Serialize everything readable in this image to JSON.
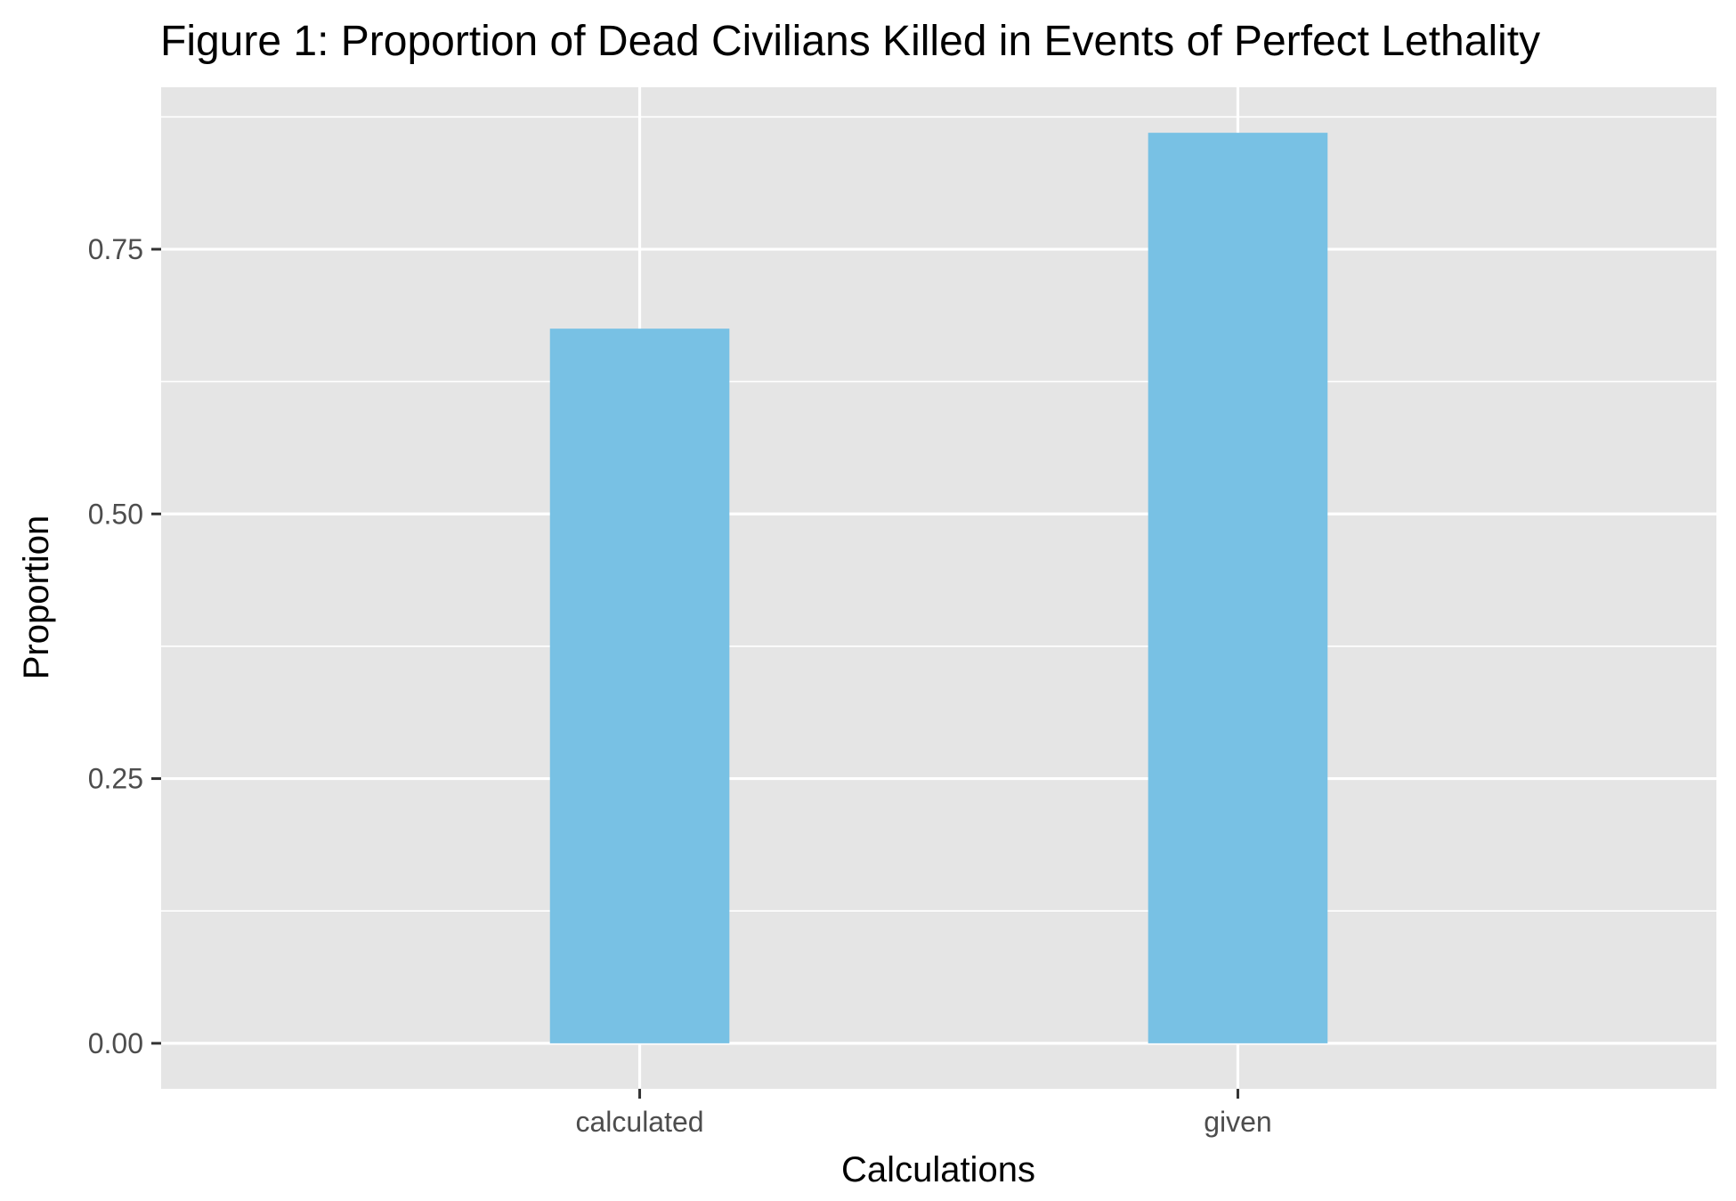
{
  "chart_data": {
    "type": "bar",
    "title": "Figure 1: Proportion of Dead Civilians Killed in Events of Perfect Lethality",
    "xlabel": "Calculations",
    "ylabel": "Proportion",
    "categories": [
      "calculated",
      "given"
    ],
    "values": [
      0.675,
      0.86
    ],
    "ylim": [
      -0.043,
      0.903
    ],
    "y_ticks": [
      0,
      0.25,
      0.5,
      0.75
    ],
    "y_tick_labels": [
      "0.00",
      "0.25",
      "0.50",
      "0.75"
    ],
    "y_minor_ticks": [
      0.125,
      0.375,
      0.625,
      0.875
    ],
    "grid": true,
    "bar_color": "#78C1E4",
    "panel_color": "#E5E5E5",
    "grid_color": "#FFFFFF"
  }
}
